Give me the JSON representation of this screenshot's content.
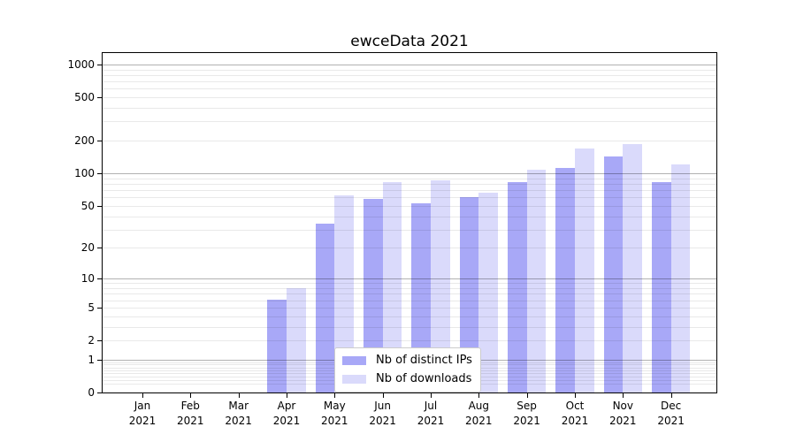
{
  "figure": {
    "title": "ewceData 2021"
  },
  "legend": {
    "items": [
      {
        "label": "Nb of distinct IPs",
        "color": "#a8a8f7"
      },
      {
        "label": "Nb of downloads",
        "color": "#dadafb"
      }
    ]
  },
  "chart_data": {
    "type": "bar",
    "title": "ewceData 2021",
    "categories": [
      "Jan",
      "Feb",
      "Mar",
      "Apr",
      "May",
      "Jun",
      "Jul",
      "Aug",
      "Sep",
      "Oct",
      "Nov",
      "Dec"
    ],
    "xtick_year": "2021",
    "series": [
      {
        "name": "Nb of distinct IPs",
        "color": "#a8a8f7",
        "values": [
          0,
          0,
          0,
          6,
          34,
          58,
          53,
          60,
          83,
          112,
          144,
          83
        ]
      },
      {
        "name": "Nb of downloads",
        "color": "#dadafb",
        "values": [
          0,
          0,
          0,
          8,
          63,
          83,
          86,
          66,
          108,
          170,
          187,
          121
        ]
      }
    ],
    "xlabel": "",
    "ylabel": "",
    "yscale": "log1p",
    "ylim": [
      0,
      1270
    ],
    "yticks": [
      {
        "value": 1000,
        "label": "1000"
      },
      {
        "value": 500,
        "label": "500"
      },
      {
        "value": 200,
        "label": "200"
      },
      {
        "value": 100,
        "label": "100"
      },
      {
        "value": 50,
        "label": "50"
      },
      {
        "value": 20,
        "label": "20"
      },
      {
        "value": 10,
        "label": "10"
      },
      {
        "value": 5,
        "label": "5"
      },
      {
        "value": 2,
        "label": "2"
      },
      {
        "value": 1,
        "label": "1"
      },
      {
        "value": 0,
        "label": "0"
      }
    ],
    "grid": true,
    "legend_position": "lower center"
  }
}
